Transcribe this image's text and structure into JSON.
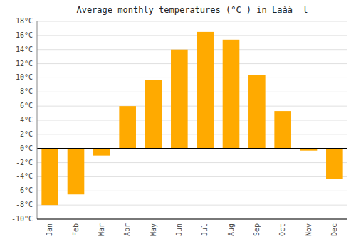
{
  "chart_data": {
    "type": "bar",
    "title": "Average monthly temperatures (°C ) in Laàà  l",
    "categories": [
      "Jan",
      "Feb",
      "Mar",
      "Apr",
      "May",
      "Jun",
      "Jul",
      "Aug",
      "Sep",
      "Oct",
      "Nov",
      "Dec"
    ],
    "values": [
      -8.0,
      -6.5,
      -1.0,
      6.0,
      9.7,
      14.0,
      16.5,
      15.4,
      10.4,
      5.3,
      -0.3,
      -4.3
    ],
    "color": "#FFAA00",
    "ylim": [
      -10,
      18
    ],
    "yticks": [
      {
        "value": -10,
        "label": "-10°C"
      },
      {
        "value": -8,
        "label": "-8°C"
      },
      {
        "value": -6,
        "label": "-6°C"
      },
      {
        "value": -4,
        "label": "-4°C"
      },
      {
        "value": -2,
        "label": "-2°C"
      },
      {
        "value": 0,
        "label": "0°C"
      },
      {
        "value": 2,
        "label": "2°C"
      },
      {
        "value": 4,
        "label": "4°C"
      },
      {
        "value": 6,
        "label": "6°C"
      },
      {
        "value": 8,
        "label": "8°C"
      },
      {
        "value": 10,
        "label": "10°C"
      },
      {
        "value": 12,
        "label": "12°C"
      },
      {
        "value": 14,
        "label": "14°C"
      },
      {
        "value": 16,
        "label": "16°C"
      },
      {
        "value": 18,
        "label": "18°C"
      }
    ],
    "grid": true
  }
}
